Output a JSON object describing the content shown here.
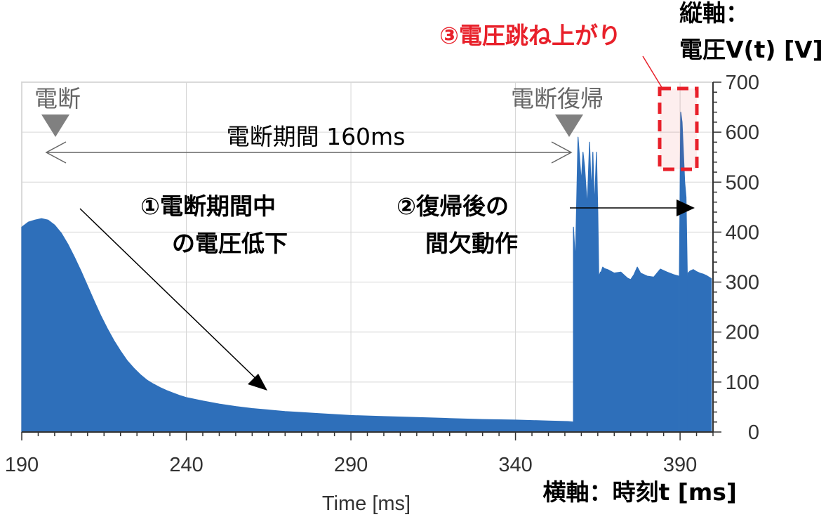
{
  "chart_data": {
    "type": "area",
    "xlabel": "Time [ms]",
    "x_axis_title": "横軸：時刻t [ms]",
    "y_axis_title_line1": "縦軸：",
    "y_axis_title_line2": "電圧V(t) [V]",
    "xlim": [
      190,
      400
    ],
    "ylim": [
      0,
      700
    ],
    "x_ticks": [
      190,
      240,
      290,
      340,
      390
    ],
    "y_ticks": [
      0,
      100,
      200,
      300,
      400,
      500,
      600,
      700
    ],
    "grid": true,
    "series_color": "#2e6fba",
    "series": [
      {
        "x": [
          190,
          192,
          194,
          196,
          198,
          200,
          202,
          204,
          206,
          208,
          210,
          212,
          214,
          216,
          218,
          220,
          222,
          224,
          226,
          228,
          230,
          232,
          234,
          236,
          238,
          240,
          245,
          250,
          255,
          260,
          265,
          270,
          275,
          280,
          285,
          290,
          300,
          310,
          320,
          330,
          340,
          350,
          356,
          357.4
        ],
        "y": [
          410,
          420,
          424,
          427,
          424,
          414,
          398,
          376,
          350,
          322,
          292,
          262,
          233,
          207,
          183,
          162,
          143,
          128,
          115,
          104,
          96,
          89,
          83,
          78,
          73,
          69,
          62,
          56,
          51,
          47,
          44,
          41,
          39,
          37,
          35,
          33,
          31,
          29,
          27,
          25,
          24,
          22,
          21,
          20
        ]
      },
      {
        "x": [
          357.6,
          358.2,
          359,
          360,
          360.5,
          361,
          361.8,
          362.5,
          363,
          363.5,
          364,
          364.6,
          365,
          365.3,
          365.8,
          366,
          366.5,
          367,
          368,
          370,
          372,
          374,
          375,
          376,
          377,
          378,
          380,
          382,
          384,
          386,
          388,
          389.6
        ],
        "y": [
          410,
          340,
          590,
          500,
          560,
          530,
          450,
          580,
          480,
          560,
          450,
          560,
          440,
          310,
          320,
          320,
          330,
          327,
          325,
          318,
          320,
          308,
          305,
          315,
          330,
          318,
          312,
          310,
          326,
          320,
          315,
          312
        ]
      },
      {
        "x": [
          389.8,
          390.2,
          390.6,
          391,
          391.4,
          391.8,
          392.2
        ],
        "y": [
          320,
          640,
          620,
          560,
          500,
          470,
          310
        ]
      },
      {
        "x": [
          392.4,
          393,
          394,
          395,
          396,
          397,
          398,
          399.5
        ],
        "y": [
          318,
          322,
          325,
          321,
          318,
          316,
          313,
          307
        ]
      }
    ]
  },
  "annotations": {
    "cut_label": "電断",
    "restore_label": "電断復帰",
    "period_label": "電断期間 160ms",
    "note1_line1": "①電断期間中",
    "note1_line2": "の電圧低下",
    "note2_line1": "②復帰後の",
    "note2_line2": "間欠動作",
    "note3": "③電圧跳ね上がり"
  }
}
